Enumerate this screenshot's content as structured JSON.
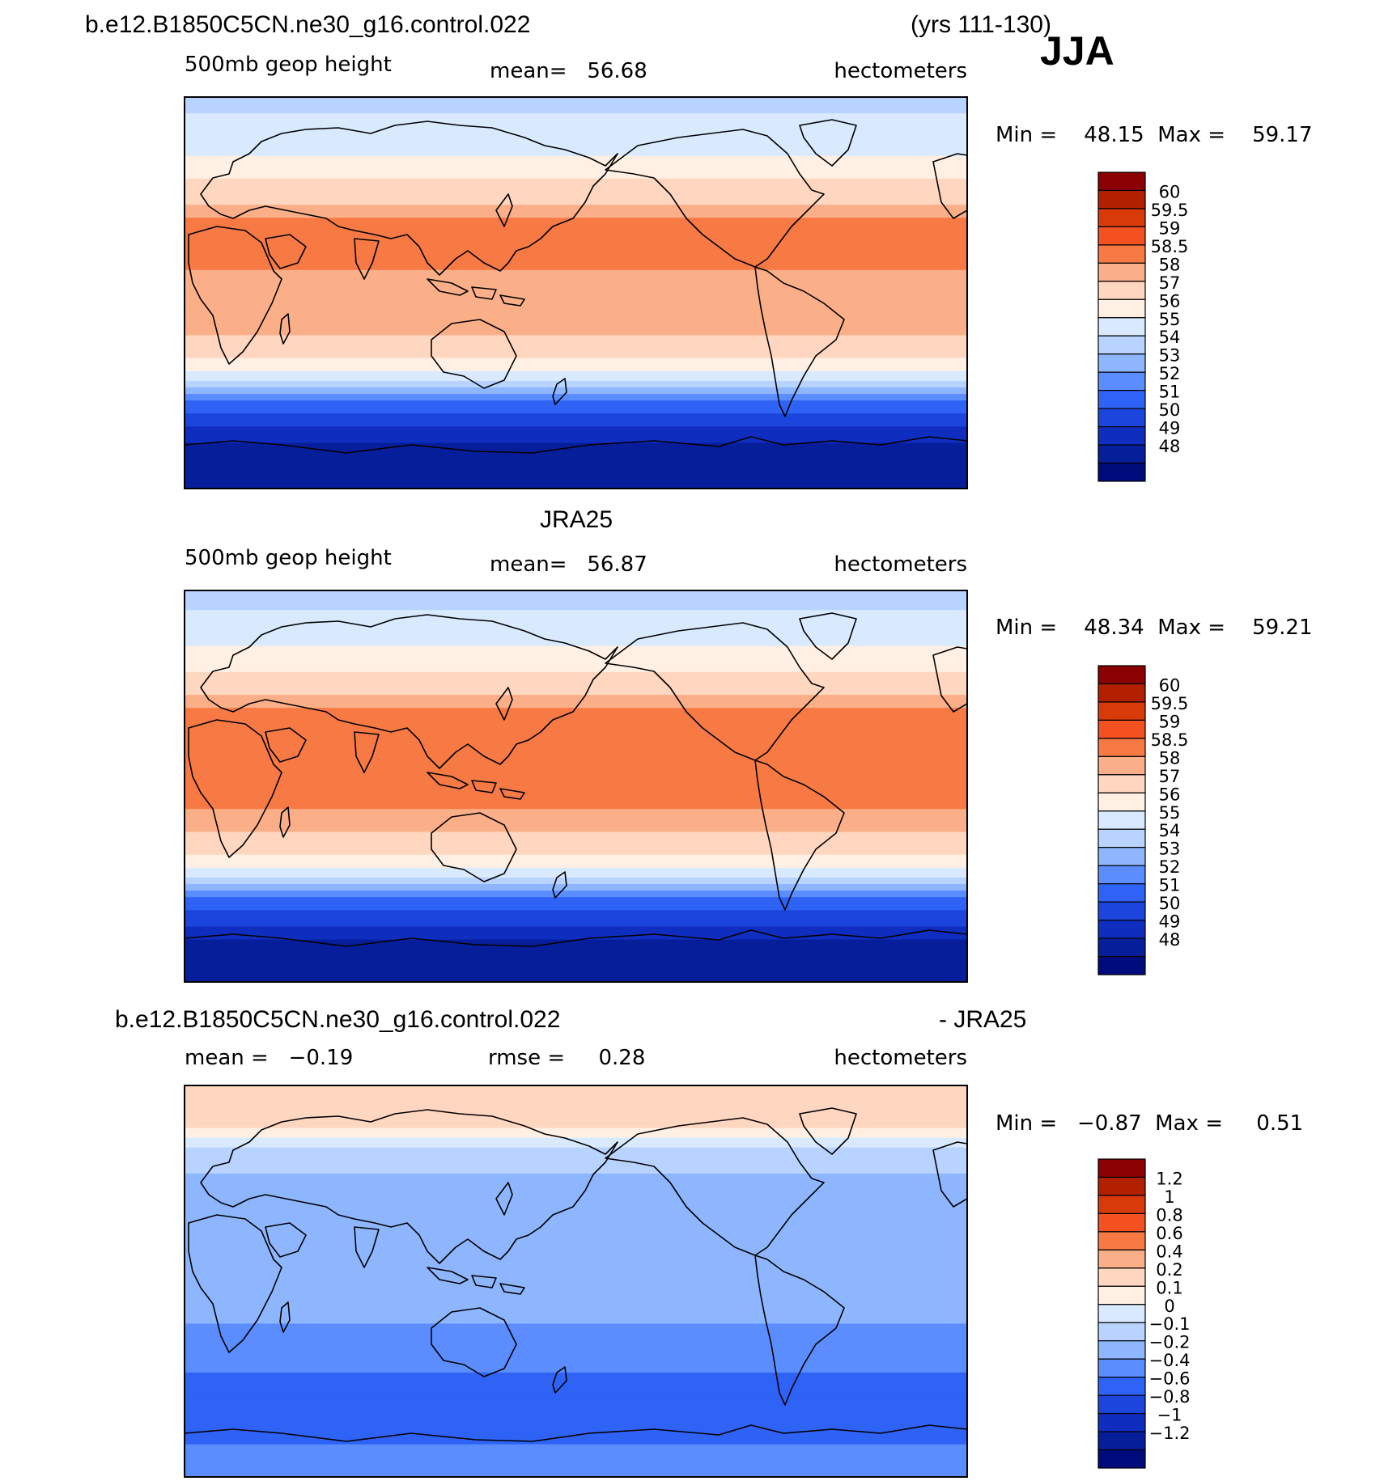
{
  "header": {
    "case_name": "b.e12.B1850C5CN.ne30_g16.control.022",
    "years": "(yrs 111-130)",
    "season": "JJA"
  },
  "panels": [
    {
      "title": "",
      "left_label": "500mb geop height",
      "center_label": "mean=   56.68",
      "right_label": "hectometers",
      "minmax": "Min =    48.15  Max =    59.17",
      "scale": "abs"
    },
    {
      "title": "JRA25",
      "left_label": "500mb geop height",
      "center_label": "mean=   56.87",
      "right_label": "hectometers",
      "minmax": "Min =    48.34  Max =    59.21",
      "scale": "abs"
    },
    {
      "title": "b.e12.B1850C5CN.ne30_g16.control.022",
      "title_right": "- JRA25",
      "left_label": "mean =   −0.19",
      "center_label": "rmse =     0.28",
      "right_label": "hectometers",
      "minmax": "Min =   −0.87  Max =     0.51",
      "scale": "diff"
    }
  ],
  "colorbars": {
    "abs": {
      "colors": [
        "#8b0000",
        "#b22000",
        "#d93a0a",
        "#f35220",
        "#f77a45",
        "#fbaf88",
        "#ffd6c0",
        "#fff0e3",
        "#d9eaff",
        "#b8d3ff",
        "#8eb6ff",
        "#5b8dff",
        "#2f63f5",
        "#1c45dd",
        "#0f2ec0",
        "#071e9a",
        "#000c7c"
      ],
      "labels": [
        "60",
        "59.5",
        "59",
        "58.5",
        "58",
        "57",
        "56",
        "55",
        "54",
        "53",
        "52",
        "51",
        "50",
        "49",
        "48"
      ]
    },
    "diff": {
      "colors": [
        "#8b0000",
        "#b22000",
        "#d93a0a",
        "#f35220",
        "#f77a45",
        "#fbaf88",
        "#ffd6c0",
        "#fff0e3",
        "#d9eaff",
        "#b8d3ff",
        "#8eb6ff",
        "#5b8dff",
        "#2f63f5",
        "#1c45dd",
        "#0f2ec0",
        "#071e9a",
        "#000c7c"
      ],
      "labels": [
        "1.2",
        "1",
        "0.8",
        "0.6",
        "0.4",
        "0.2",
        "0.1",
        "0",
        "−0.1",
        "−0.2",
        "−0.4",
        "−0.6",
        "−0.8",
        "−1",
        "−1.2"
      ]
    }
  },
  "chart_data": [
    {
      "type": "heatmap",
      "title": "b.e12.B1850C5CN.ne30_g16.control.022 (yrs 111-130) JJA",
      "variable": "500mb geop height",
      "units": "hectometers",
      "mean": 56.68,
      "min": 48.15,
      "max": 59.17,
      "contour_levels": [
        48,
        49,
        50,
        51,
        52,
        53,
        54,
        55,
        56,
        57,
        58,
        58.5,
        59,
        59.5,
        60
      ],
      "zonal_profile": {
        "lat": [
          90,
          80,
          70,
          60,
          50,
          40,
          30,
          20,
          10,
          0,
          -10,
          -20,
          -30,
          -40,
          -45,
          -50,
          -55,
          -60,
          -65,
          -70,
          -80,
          -90
        ],
        "value": [
          54.5,
          55.2,
          55.6,
          56.2,
          57.2,
          58.0,
          58.8,
          58.7,
          58.5,
          58.4,
          58.3,
          58.0,
          57.0,
          55.3,
          53.5,
          52.0,
          51.0,
          50.3,
          49.5,
          48.8,
          48.4,
          48.2
        ]
      }
    },
    {
      "type": "heatmap",
      "title": "JRA25",
      "variable": "500mb geop height",
      "units": "hectometers",
      "mean": 56.87,
      "min": 48.34,
      "max": 59.21,
      "contour_levels": [
        48,
        49,
        50,
        51,
        52,
        53,
        54,
        55,
        56,
        57,
        58,
        58.5,
        59,
        59.5,
        60
      ],
      "zonal_profile": {
        "lat": [
          90,
          80,
          70,
          60,
          50,
          40,
          30,
          20,
          10,
          0,
          -10,
          -20,
          -30,
          -40,
          -45,
          -50,
          -55,
          -60,
          -65,
          -70,
          -80,
          -90
        ],
        "value": [
          54.3,
          55.1,
          55.6,
          56.3,
          57.3,
          58.2,
          58.9,
          58.8,
          58.7,
          58.6,
          58.5,
          58.1,
          57.2,
          55.5,
          53.8,
          52.3,
          51.3,
          50.6,
          49.8,
          49.0,
          48.5,
          48.4
        ]
      }
    },
    {
      "type": "heatmap",
      "title": "b.e12.B1850C5CN.ne30_g16.control.022 - JRA25",
      "units": "hectometers",
      "mean": -0.19,
      "rmse": 0.28,
      "min": -0.87,
      "max": 0.51,
      "contour_levels": [
        -1.2,
        -1,
        -0.8,
        -0.6,
        -0.4,
        -0.2,
        -0.1,
        0,
        0.1,
        0.2,
        0.4,
        0.6,
        0.8,
        1,
        1.2
      ],
      "zonal_profile": {
        "lat": [
          90,
          80,
          70,
          60,
          50,
          40,
          30,
          20,
          10,
          0,
          -10,
          -20,
          -30,
          -40,
          -50,
          -60,
          -70,
          -80,
          -90
        ],
        "value": [
          0.35,
          0.3,
          0.2,
          -0.05,
          -0.1,
          -0.15,
          -0.15,
          -0.15,
          -0.15,
          -0.15,
          -0.15,
          -0.2,
          -0.3,
          -0.35,
          -0.55,
          -0.5,
          -0.45,
          -0.35,
          -0.3
        ]
      }
    }
  ]
}
